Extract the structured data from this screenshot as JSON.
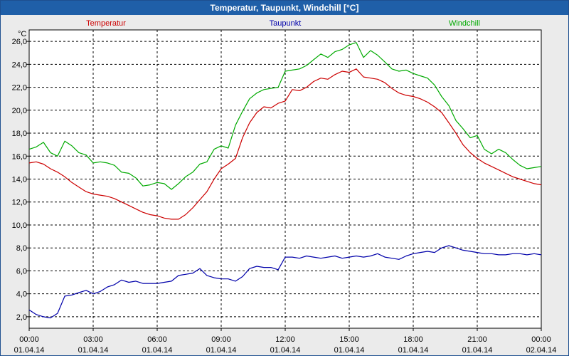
{
  "window": {
    "title": "Temperatur, Taupunkt, Windchill [°C]"
  },
  "chart_data": {
    "type": "line",
    "unit_label": "°C",
    "ylim": [
      1,
      27
    ],
    "xlim_hours": [
      0,
      24
    ],
    "grid": true,
    "legend_position": "top",
    "y_ticks": [
      "26,0",
      "24,0",
      "22,0",
      "20,0",
      "18,0",
      "16,0",
      "14,0",
      "12,0",
      "10,0",
      "8,0",
      "6,0",
      "4,0",
      "2,0"
    ],
    "y_tick_values": [
      26,
      24,
      22,
      20,
      18,
      16,
      14,
      12,
      10,
      8,
      6,
      4,
      2
    ],
    "x_ticks": [
      {
        "hour": 0,
        "time": "00:00",
        "date": "01.04.14"
      },
      {
        "hour": 3,
        "time": "03:00",
        "date": "01.04.14"
      },
      {
        "hour": 6,
        "time": "06:00",
        "date": "01.04.14"
      },
      {
        "hour": 9,
        "time": "09:00",
        "date": "01.04.14"
      },
      {
        "hour": 12,
        "time": "12:00",
        "date": "01.04.14"
      },
      {
        "hour": 15,
        "time": "15:00",
        "date": "01.04.14"
      },
      {
        "hour": 18,
        "time": "18:00",
        "date": "01.04.14"
      },
      {
        "hour": 21,
        "time": "21:00",
        "date": "01.04.14"
      },
      {
        "hour": 24,
        "time": "00:00",
        "date": "02.04.14"
      }
    ],
    "series": [
      {
        "name": "Temperatur",
        "color": "#cc0000",
        "x_hours": [
          0,
          0.33,
          0.67,
          1,
          1.33,
          1.67,
          2,
          2.33,
          2.67,
          3,
          3.33,
          3.67,
          4,
          4.33,
          4.67,
          5,
          5.33,
          5.67,
          6,
          6.33,
          6.67,
          7,
          7.33,
          7.67,
          8,
          8.33,
          8.67,
          9,
          9.33,
          9.67,
          10,
          10.33,
          10.67,
          11,
          11.33,
          11.67,
          12,
          12.33,
          12.67,
          13,
          13.33,
          13.67,
          14,
          14.33,
          14.67,
          15,
          15.33,
          15.67,
          16,
          16.33,
          16.67,
          17,
          17.33,
          17.67,
          18,
          18.33,
          18.67,
          19,
          19.33,
          19.67,
          20,
          20.33,
          20.67,
          21,
          21.33,
          21.67,
          22,
          22.33,
          22.67,
          23,
          23.33,
          23.67,
          24
        ],
        "values": [
          15.4,
          15.5,
          15.3,
          14.9,
          14.6,
          14.2,
          13.7,
          13.3,
          12.9,
          12.7,
          12.6,
          12.5,
          12.3,
          12.0,
          11.7,
          11.4,
          11.1,
          10.9,
          10.8,
          10.6,
          10.5,
          10.5,
          10.9,
          11.5,
          12.2,
          12.9,
          14.0,
          14.9,
          15.3,
          15.8,
          17.6,
          18.9,
          19.8,
          20.3,
          20.2,
          20.6,
          20.8,
          21.8,
          21.7,
          22.0,
          22.5,
          22.8,
          22.7,
          23.1,
          23.4,
          23.3,
          23.6,
          22.9,
          22.8,
          22.7,
          22.4,
          21.9,
          21.5,
          21.3,
          21.2,
          21.0,
          20.7,
          20.3,
          19.8,
          18.9,
          18.0,
          17.0,
          16.3,
          15.8,
          15.4,
          15.1,
          14.8,
          14.5,
          14.2,
          14.0,
          13.8,
          13.6,
          13.5
        ]
      },
      {
        "name": "Taupunkt",
        "color": "#0000aa",
        "x_hours": [
          0,
          0.33,
          0.67,
          1,
          1.33,
          1.67,
          2,
          2.33,
          2.67,
          3,
          3.33,
          3.67,
          4,
          4.33,
          4.67,
          5,
          5.33,
          5.67,
          6,
          6.33,
          6.67,
          7,
          7.33,
          7.67,
          8,
          8.33,
          8.67,
          9,
          9.33,
          9.67,
          10,
          10.33,
          10.67,
          11,
          11.33,
          11.67,
          12,
          12.33,
          12.67,
          13,
          13.33,
          13.67,
          14,
          14.33,
          14.67,
          15,
          15.33,
          15.67,
          16,
          16.33,
          16.67,
          17,
          17.33,
          17.67,
          18,
          18.33,
          18.67,
          19,
          19.33,
          19.67,
          20,
          20.33,
          20.67,
          21,
          21.33,
          21.67,
          22,
          22.33,
          22.67,
          23,
          23.33,
          23.67,
          24
        ],
        "values": [
          2.6,
          2.2,
          2.0,
          1.9,
          2.3,
          3.8,
          3.9,
          4.1,
          4.3,
          4.0,
          4.2,
          4.6,
          4.8,
          5.2,
          5.0,
          5.1,
          4.9,
          4.9,
          4.9,
          5.0,
          5.1,
          5.6,
          5.7,
          5.8,
          6.2,
          5.6,
          5.4,
          5.3,
          5.3,
          5.1,
          5.5,
          6.2,
          6.4,
          6.3,
          6.3,
          6.1,
          7.2,
          7.2,
          7.1,
          7.3,
          7.2,
          7.1,
          7.2,
          7.3,
          7.1,
          7.2,
          7.3,
          7.2,
          7.3,
          7.5,
          7.2,
          7.1,
          7.0,
          7.3,
          7.5,
          7.6,
          7.7,
          7.6,
          8.0,
          8.2,
          8.0,
          7.8,
          7.7,
          7.6,
          7.5,
          7.5,
          7.4,
          7.4,
          7.5,
          7.5,
          7.4,
          7.5,
          7.4
        ]
      },
      {
        "name": "Windchill",
        "color": "#00aa00",
        "x_hours": [
          0,
          0.33,
          0.67,
          1,
          1.33,
          1.67,
          2,
          2.33,
          2.67,
          3,
          3.33,
          3.67,
          4,
          4.33,
          4.67,
          5,
          5.33,
          5.67,
          6,
          6.33,
          6.67,
          7,
          7.33,
          7.67,
          8,
          8.33,
          8.67,
          9,
          9.33,
          9.67,
          10,
          10.33,
          10.67,
          11,
          11.33,
          11.67,
          12,
          12.33,
          12.67,
          13,
          13.33,
          13.67,
          14,
          14.33,
          14.67,
          15,
          15.33,
          15.67,
          16,
          16.33,
          16.67,
          17,
          17.33,
          17.67,
          18,
          18.33,
          18.67,
          19,
          19.33,
          19.67,
          20,
          20.33,
          20.67,
          21,
          21.33,
          21.67,
          22,
          22.33,
          22.67,
          23,
          23.33,
          23.67,
          24
        ],
        "values": [
          16.6,
          16.8,
          17.2,
          16.3,
          16.0,
          17.3,
          16.9,
          16.3,
          16.1,
          15.4,
          15.5,
          15.4,
          15.2,
          14.6,
          14.5,
          14.1,
          13.4,
          13.5,
          13.7,
          13.6,
          13.1,
          13.6,
          14.2,
          14.6,
          15.3,
          15.5,
          16.6,
          16.9,
          16.7,
          18.7,
          19.9,
          21.0,
          21.5,
          21.8,
          21.9,
          22.0,
          23.4,
          23.5,
          23.6,
          23.9,
          24.4,
          24.9,
          24.6,
          25.1,
          25.3,
          25.7,
          25.9,
          24.6,
          25.2,
          24.8,
          24.2,
          23.6,
          23.4,
          23.5,
          23.2,
          23.0,
          22.8,
          22.2,
          21.2,
          20.4,
          19.1,
          18.4,
          17.6,
          17.8,
          16.6,
          16.2,
          16.6,
          16.3,
          15.7,
          15.2,
          14.9,
          15.0,
          15.1
        ]
      }
    ]
  }
}
